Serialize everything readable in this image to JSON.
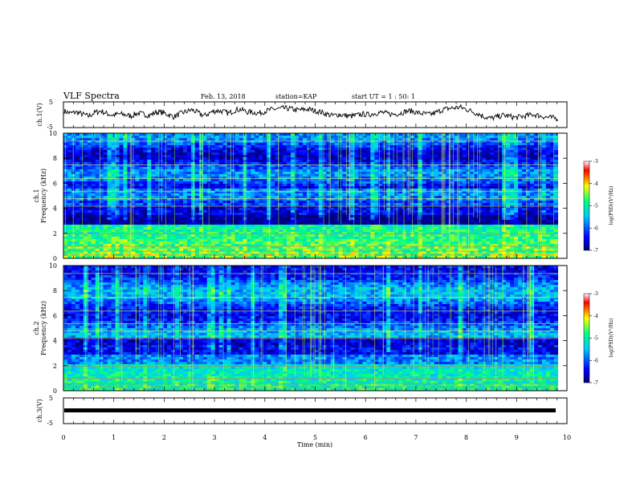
{
  "header": {
    "title": "VLF Spectra",
    "date": "Feb. 13, 2018",
    "station": "station=KAP",
    "start": "start UT =  1 : 50: 1"
  },
  "chart_data": [
    {
      "type": "line",
      "ylabel": "ch.1(V)",
      "ylim": [
        -5,
        5
      ],
      "yticks": [
        "5",
        "-5"
      ],
      "series": [
        {
          "values": [
            1.4,
            0.6,
            1.0,
            0.2,
            -0.6,
            0.8,
            1.5,
            0.4,
            -0.2,
            0.3,
            0.0,
            -0.5,
            0.6,
            0.2,
            -0.3,
            1.0,
            0.9,
            0.1,
            -0.8,
            0.4,
            1.2,
            1.9,
            0.7,
            -0.4,
            0.9,
            1.6,
            1.3,
            0.5,
            1.8,
            2.1,
            1.1,
            0.9,
            0.6,
            1.4,
            2.0,
            2.3,
            2.5,
            2.4,
            1.8,
            1.9,
            2.2,
            1.6,
            1.1,
            0.3,
            -0.4,
            0.1,
            -0.3,
            -0.6,
            -0.2,
            0.2,
            0.0,
            0.6,
            0.9,
            0.4,
            0.2,
            0.5,
            1.3,
            1.5,
            0.7,
            0.4,
            0.1,
            0.8,
            1.9,
            2.4,
            2.7,
            2.9,
            2.1,
            1.2,
            0.3,
            -0.8,
            -1.4,
            -0.9,
            -0.2,
            -0.6,
            -1.1,
            -0.8,
            -0.3,
            0.1,
            -0.4,
            -0.9,
            -1.2,
            -1.4
          ]
        }
      ]
    },
    {
      "type": "heatmap",
      "ylabel": "ch.1\nFrequency (kHz)",
      "ylim": [
        0,
        10
      ],
      "yticks": [
        "0",
        "2",
        "4",
        "6",
        "8",
        "10"
      ],
      "colorbar": {
        "label": "log(PSD)(V²/Hz)",
        "range": [
          -7,
          -3
        ],
        "ticks": [
          "-3",
          "-4",
          "-5",
          "-6",
          "-7"
        ]
      }
    },
    {
      "type": "heatmap",
      "ylabel": "ch.2\nFrequency (kHz)",
      "ylim": [
        0,
        10
      ],
      "yticks": [
        "0",
        "2",
        "4",
        "6",
        "8",
        "10"
      ],
      "colorbar": {
        "label": "log(PSD)(V²/Hz)",
        "range": [
          -7,
          -3
        ],
        "ticks": [
          "-3",
          "-4",
          "-5",
          "-6",
          "-7"
        ]
      }
    },
    {
      "type": "line",
      "ylabel": "ch.3(V)",
      "ylim": [
        -5,
        5
      ],
      "yticks": [
        "5",
        "-5"
      ],
      "series": [
        {
          "values": [
            0.0,
            0.0
          ]
        }
      ]
    }
  ],
  "xaxis": {
    "label": "Time (min)",
    "ticks": [
      "0",
      "1",
      "2",
      "3",
      "4",
      "5",
      "6",
      "7",
      "8",
      "9",
      "10"
    ],
    "xlim": [
      0,
      10
    ],
    "data_end": 9.82
  },
  "colors": {
    "frame": "#000000",
    "colormap": [
      "#00007a",
      "#0000ff",
      "#00c8ff",
      "#00ff80",
      "#ffff00",
      "#ff0000"
    ]
  }
}
